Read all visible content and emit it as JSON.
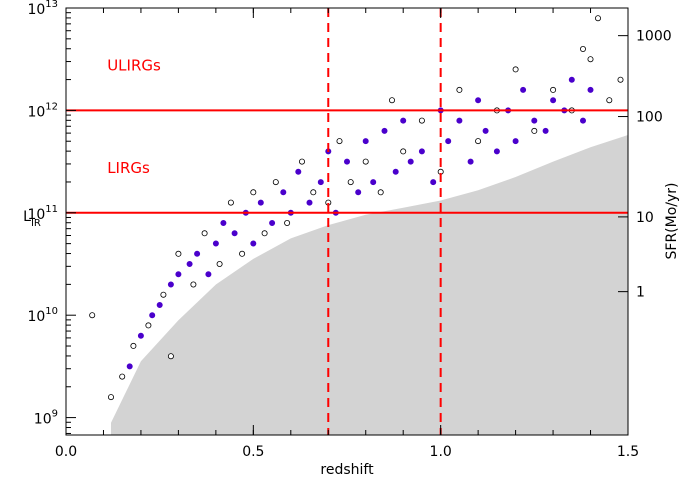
{
  "chart_data": {
    "type": "scatter",
    "xlabel": "redshift",
    "ylabel": "L",
    "ylabel_sub": "IR",
    "ylabel_right": "SFR(Mo/yr)",
    "xlim": [
      0.0,
      1.5
    ],
    "ylim": [
      8.83,
      13.0
    ],
    "y_scale": "log",
    "grid": false,
    "x_ticks": [
      {
        "value": 0.0,
        "label": "0.0"
      },
      {
        "value": 0.5,
        "label": "0.5"
      },
      {
        "value": 1.0,
        "label": "1.0"
      },
      {
        "value": 1.5,
        "label": "1.5"
      }
    ],
    "y_ticks": [
      {
        "value": 9,
        "base": "10",
        "exp": "9"
      },
      {
        "value": 10,
        "base": "10",
        "exp": "10"
      },
      {
        "value": 11,
        "base": "10",
        "exp": "11"
      },
      {
        "value": 12,
        "base": "10",
        "exp": "12"
      },
      {
        "value": 13,
        "base": "10",
        "exp": "13"
      }
    ],
    "y_right_ticks": [
      {
        "value": 1,
        "label": "1",
        "logL": 10.23
      },
      {
        "value": 10,
        "label": "10",
        "logL": 10.96
      },
      {
        "value": 100,
        "label": "100",
        "logL": 11.94
      },
      {
        "value": 1000,
        "label": "1000",
        "logL": 12.73
      }
    ],
    "horizontal_lines": [
      11.0,
      12.0
    ],
    "vertical_lines": [
      0.7,
      1.0
    ],
    "annotations": [
      {
        "text": "ULIRGs",
        "x": 0.11,
        "y": 12.39
      },
      {
        "text": "LIRGs",
        "x": 0.11,
        "y": 11.39
      }
    ],
    "detection_limit": {
      "x": [
        0.12,
        0.2,
        0.3,
        0.4,
        0.5,
        0.6,
        0.7,
        0.8,
        0.9,
        1.0,
        1.1,
        1.2,
        1.3,
        1.4,
        1.5
      ],
      "y": [
        8.95,
        9.55,
        9.95,
        10.3,
        10.55,
        10.75,
        10.88,
        10.98,
        11.05,
        11.12,
        11.22,
        11.35,
        11.5,
        11.64,
        11.76
      ]
    },
    "series": [
      {
        "marker": "filled",
        "points": [
          [
            0.17,
            9.5
          ],
          [
            0.2,
            9.8
          ],
          [
            0.23,
            10.0
          ],
          [
            0.25,
            10.1
          ],
          [
            0.28,
            10.3
          ],
          [
            0.3,
            10.4
          ],
          [
            0.33,
            10.5
          ],
          [
            0.35,
            10.6
          ],
          [
            0.38,
            10.4
          ],
          [
            0.4,
            10.7
          ],
          [
            0.42,
            10.9
          ],
          [
            0.45,
            10.8
          ],
          [
            0.48,
            11.0
          ],
          [
            0.5,
            10.7
          ],
          [
            0.52,
            11.1
          ],
          [
            0.55,
            10.9
          ],
          [
            0.58,
            11.2
          ],
          [
            0.6,
            11.0
          ],
          [
            0.62,
            11.4
          ],
          [
            0.65,
            11.1
          ],
          [
            0.68,
            11.3
          ],
          [
            0.7,
            11.6
          ],
          [
            0.72,
            11.0
          ],
          [
            0.75,
            11.5
          ],
          [
            0.78,
            11.2
          ],
          [
            0.8,
            11.7
          ],
          [
            0.82,
            11.3
          ],
          [
            0.85,
            11.8
          ],
          [
            0.88,
            11.4
          ],
          [
            0.9,
            11.9
          ],
          [
            0.92,
            11.5
          ],
          [
            0.95,
            11.6
          ],
          [
            0.98,
            11.3
          ],
          [
            1.0,
            12.0
          ],
          [
            1.02,
            11.7
          ],
          [
            1.05,
            11.9
          ],
          [
            1.08,
            11.5
          ],
          [
            1.1,
            12.1
          ],
          [
            1.12,
            11.8
          ],
          [
            1.15,
            11.6
          ],
          [
            1.18,
            12.0
          ],
          [
            1.2,
            11.7
          ],
          [
            1.22,
            12.2
          ],
          [
            1.25,
            11.9
          ],
          [
            1.28,
            11.8
          ],
          [
            1.3,
            12.1
          ],
          [
            1.33,
            12.0
          ],
          [
            1.35,
            12.3
          ],
          [
            1.38,
            11.9
          ],
          [
            1.4,
            12.2
          ]
        ]
      },
      {
        "marker": "open",
        "points": [
          [
            0.12,
            9.2
          ],
          [
            0.15,
            9.4
          ],
          [
            0.18,
            9.7
          ],
          [
            0.22,
            9.9
          ],
          [
            0.26,
            10.2
          ],
          [
            0.3,
            10.6
          ],
          [
            0.34,
            10.3
          ],
          [
            0.37,
            10.8
          ],
          [
            0.41,
            10.5
          ],
          [
            0.44,
            11.1
          ],
          [
            0.47,
            10.6
          ],
          [
            0.5,
            11.2
          ],
          [
            0.53,
            10.8
          ],
          [
            0.56,
            11.3
          ],
          [
            0.59,
            10.9
          ],
          [
            0.63,
            11.5
          ],
          [
            0.66,
            11.2
          ],
          [
            0.7,
            11.1
          ],
          [
            0.73,
            11.7
          ],
          [
            0.76,
            11.3
          ],
          [
            0.8,
            11.5
          ],
          [
            0.84,
            11.2
          ],
          [
            0.87,
            12.1
          ],
          [
            0.9,
            11.6
          ],
          [
            0.95,
            11.9
          ],
          [
            1.0,
            11.4
          ],
          [
            1.05,
            12.2
          ],
          [
            1.1,
            11.7
          ],
          [
            1.15,
            12.0
          ],
          [
            1.2,
            12.4
          ],
          [
            1.25,
            11.8
          ],
          [
            1.3,
            12.2
          ],
          [
            1.35,
            12.0
          ],
          [
            1.4,
            12.5
          ],
          [
            1.45,
            12.1
          ],
          [
            1.48,
            12.3
          ],
          [
            1.42,
            12.9
          ],
          [
            1.38,
            12.6
          ],
          [
            0.07,
            10.0
          ],
          [
            0.28,
            9.6
          ]
        ]
      }
    ],
    "colors": {
      "filled_marker": "#4a00cc",
      "open_marker_edge": "#000000",
      "reference_lines": "#ff0000",
      "annotation_text": "#ff0000",
      "limit_region": "#d3d3d3"
    }
  }
}
